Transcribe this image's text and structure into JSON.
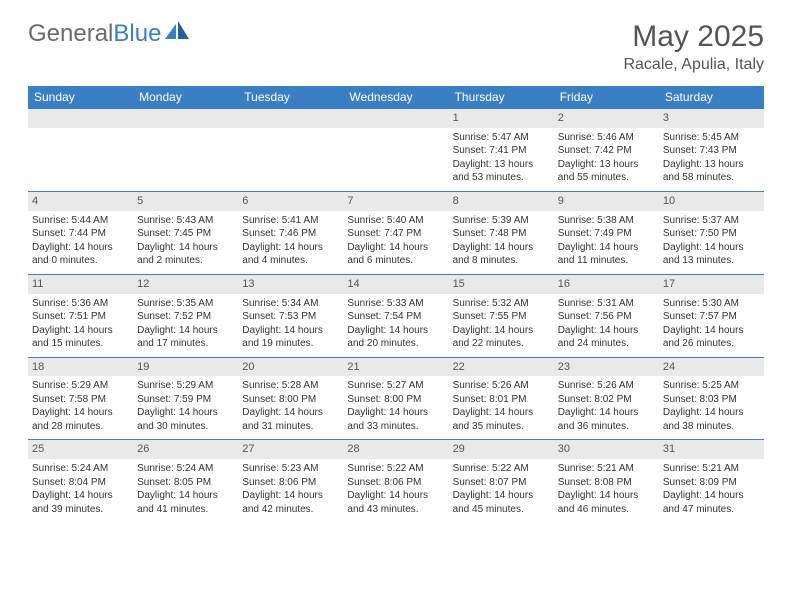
{
  "brand": {
    "part1": "General",
    "part2": "Blue"
  },
  "title": {
    "month": "May 2025",
    "location": "Racale, Apulia, Italy"
  },
  "colors": {
    "header_bg": "#3a7fc4",
    "header_text": "#ffffff",
    "daynum_bg": "#e9e9e9",
    "row_border": "#3a7fc4",
    "body_text": "#333333",
    "brand_gray": "#6b6b6b",
    "brand_blue": "#3a7fc4"
  },
  "days_of_week": [
    "Sunday",
    "Monday",
    "Tuesday",
    "Wednesday",
    "Thursday",
    "Friday",
    "Saturday"
  ],
  "weeks": [
    [
      null,
      null,
      null,
      null,
      {
        "n": "1",
        "sr": "Sunrise: 5:47 AM",
        "ss": "Sunset: 7:41 PM",
        "d1": "Daylight: 13 hours",
        "d2": "and 53 minutes."
      },
      {
        "n": "2",
        "sr": "Sunrise: 5:46 AM",
        "ss": "Sunset: 7:42 PM",
        "d1": "Daylight: 13 hours",
        "d2": "and 55 minutes."
      },
      {
        "n": "3",
        "sr": "Sunrise: 5:45 AM",
        "ss": "Sunset: 7:43 PM",
        "d1": "Daylight: 13 hours",
        "d2": "and 58 minutes."
      }
    ],
    [
      {
        "n": "4",
        "sr": "Sunrise: 5:44 AM",
        "ss": "Sunset: 7:44 PM",
        "d1": "Daylight: 14 hours",
        "d2": "and 0 minutes."
      },
      {
        "n": "5",
        "sr": "Sunrise: 5:43 AM",
        "ss": "Sunset: 7:45 PM",
        "d1": "Daylight: 14 hours",
        "d2": "and 2 minutes."
      },
      {
        "n": "6",
        "sr": "Sunrise: 5:41 AM",
        "ss": "Sunset: 7:46 PM",
        "d1": "Daylight: 14 hours",
        "d2": "and 4 minutes."
      },
      {
        "n": "7",
        "sr": "Sunrise: 5:40 AM",
        "ss": "Sunset: 7:47 PM",
        "d1": "Daylight: 14 hours",
        "d2": "and 6 minutes."
      },
      {
        "n": "8",
        "sr": "Sunrise: 5:39 AM",
        "ss": "Sunset: 7:48 PM",
        "d1": "Daylight: 14 hours",
        "d2": "and 8 minutes."
      },
      {
        "n": "9",
        "sr": "Sunrise: 5:38 AM",
        "ss": "Sunset: 7:49 PM",
        "d1": "Daylight: 14 hours",
        "d2": "and 11 minutes."
      },
      {
        "n": "10",
        "sr": "Sunrise: 5:37 AM",
        "ss": "Sunset: 7:50 PM",
        "d1": "Daylight: 14 hours",
        "d2": "and 13 minutes."
      }
    ],
    [
      {
        "n": "11",
        "sr": "Sunrise: 5:36 AM",
        "ss": "Sunset: 7:51 PM",
        "d1": "Daylight: 14 hours",
        "d2": "and 15 minutes."
      },
      {
        "n": "12",
        "sr": "Sunrise: 5:35 AM",
        "ss": "Sunset: 7:52 PM",
        "d1": "Daylight: 14 hours",
        "d2": "and 17 minutes."
      },
      {
        "n": "13",
        "sr": "Sunrise: 5:34 AM",
        "ss": "Sunset: 7:53 PM",
        "d1": "Daylight: 14 hours",
        "d2": "and 19 minutes."
      },
      {
        "n": "14",
        "sr": "Sunrise: 5:33 AM",
        "ss": "Sunset: 7:54 PM",
        "d1": "Daylight: 14 hours",
        "d2": "and 20 minutes."
      },
      {
        "n": "15",
        "sr": "Sunrise: 5:32 AM",
        "ss": "Sunset: 7:55 PM",
        "d1": "Daylight: 14 hours",
        "d2": "and 22 minutes."
      },
      {
        "n": "16",
        "sr": "Sunrise: 5:31 AM",
        "ss": "Sunset: 7:56 PM",
        "d1": "Daylight: 14 hours",
        "d2": "and 24 minutes."
      },
      {
        "n": "17",
        "sr": "Sunrise: 5:30 AM",
        "ss": "Sunset: 7:57 PM",
        "d1": "Daylight: 14 hours",
        "d2": "and 26 minutes."
      }
    ],
    [
      {
        "n": "18",
        "sr": "Sunrise: 5:29 AM",
        "ss": "Sunset: 7:58 PM",
        "d1": "Daylight: 14 hours",
        "d2": "and 28 minutes."
      },
      {
        "n": "19",
        "sr": "Sunrise: 5:29 AM",
        "ss": "Sunset: 7:59 PM",
        "d1": "Daylight: 14 hours",
        "d2": "and 30 minutes."
      },
      {
        "n": "20",
        "sr": "Sunrise: 5:28 AM",
        "ss": "Sunset: 8:00 PM",
        "d1": "Daylight: 14 hours",
        "d2": "and 31 minutes."
      },
      {
        "n": "21",
        "sr": "Sunrise: 5:27 AM",
        "ss": "Sunset: 8:00 PM",
        "d1": "Daylight: 14 hours",
        "d2": "and 33 minutes."
      },
      {
        "n": "22",
        "sr": "Sunrise: 5:26 AM",
        "ss": "Sunset: 8:01 PM",
        "d1": "Daylight: 14 hours",
        "d2": "and 35 minutes."
      },
      {
        "n": "23",
        "sr": "Sunrise: 5:26 AM",
        "ss": "Sunset: 8:02 PM",
        "d1": "Daylight: 14 hours",
        "d2": "and 36 minutes."
      },
      {
        "n": "24",
        "sr": "Sunrise: 5:25 AM",
        "ss": "Sunset: 8:03 PM",
        "d1": "Daylight: 14 hours",
        "d2": "and 38 minutes."
      }
    ],
    [
      {
        "n": "25",
        "sr": "Sunrise: 5:24 AM",
        "ss": "Sunset: 8:04 PM",
        "d1": "Daylight: 14 hours",
        "d2": "and 39 minutes."
      },
      {
        "n": "26",
        "sr": "Sunrise: 5:24 AM",
        "ss": "Sunset: 8:05 PM",
        "d1": "Daylight: 14 hours",
        "d2": "and 41 minutes."
      },
      {
        "n": "27",
        "sr": "Sunrise: 5:23 AM",
        "ss": "Sunset: 8:06 PM",
        "d1": "Daylight: 14 hours",
        "d2": "and 42 minutes."
      },
      {
        "n": "28",
        "sr": "Sunrise: 5:22 AM",
        "ss": "Sunset: 8:06 PM",
        "d1": "Daylight: 14 hours",
        "d2": "and 43 minutes."
      },
      {
        "n": "29",
        "sr": "Sunrise: 5:22 AM",
        "ss": "Sunset: 8:07 PM",
        "d1": "Daylight: 14 hours",
        "d2": "and 45 minutes."
      },
      {
        "n": "30",
        "sr": "Sunrise: 5:21 AM",
        "ss": "Sunset: 8:08 PM",
        "d1": "Daylight: 14 hours",
        "d2": "and 46 minutes."
      },
      {
        "n": "31",
        "sr": "Sunrise: 5:21 AM",
        "ss": "Sunset: 8:09 PM",
        "d1": "Daylight: 14 hours",
        "d2": "and 47 minutes."
      }
    ]
  ]
}
